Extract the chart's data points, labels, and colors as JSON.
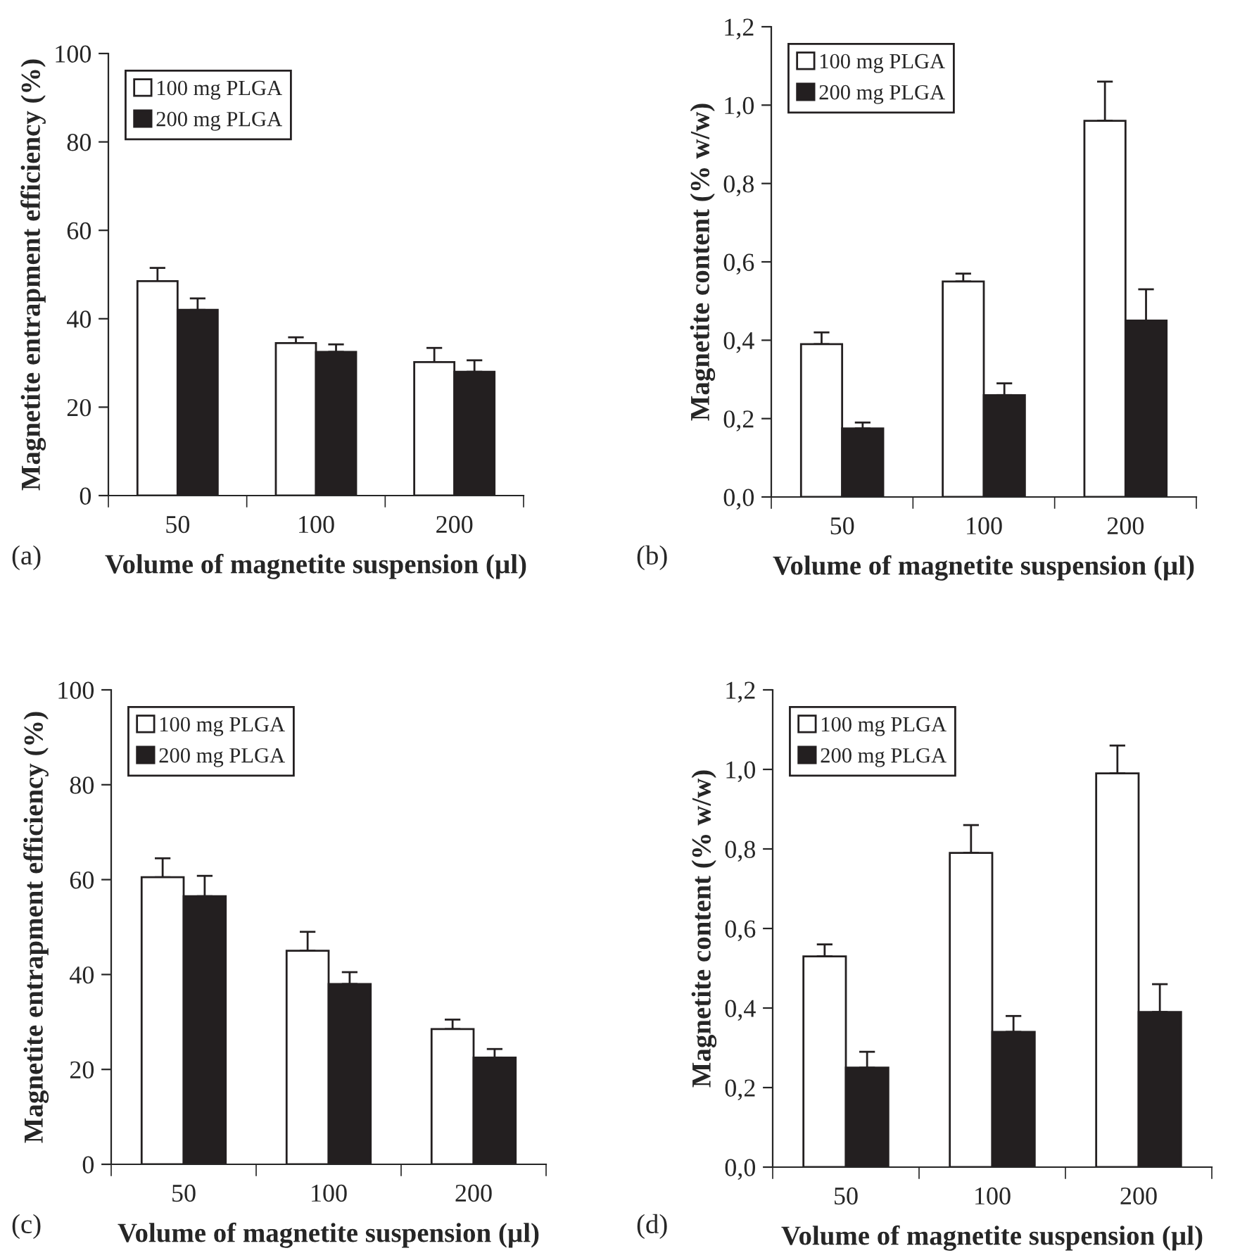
{
  "chart_data": [
    {
      "type": "bar",
      "xlabel": "Volume of magnetite suspension (µl)",
      "ylabel": "Magnetite entrapment efficiency (%)",
      "categories": [
        "50",
        "100",
        "200"
      ],
      "ylim": [
        0,
        100
      ],
      "yticks": [
        0,
        20,
        40,
        60,
        80,
        100
      ],
      "legend": "top left",
      "grid": false,
      "annotations": [
        "(a)"
      ],
      "series": [
        {
          "name": "100 mg PLGA",
          "color": "#ffffff",
          "values": [
            48.5,
            34.5,
            30.2
          ],
          "errors": [
            [
              48.5,
              51.5
            ],
            [
              34.5,
              35.8
            ],
            [
              30.2,
              33.4
            ]
          ]
        },
        {
          "name": "200 mg PLGA",
          "color": "#231f20",
          "values": [
            42,
            32.5,
            28
          ],
          "errors": [
            [
              42,
              44.6
            ],
            [
              32.5,
              34.2
            ],
            [
              28,
              30.6
            ]
          ]
        }
      ]
    },
    {
      "type": "bar",
      "xlabel": "Volume of magnetite suspension (µl)",
      "ylabel": "Magnetite content (% w/w)",
      "categories": [
        "50",
        "100",
        "200"
      ],
      "ylim": [
        0,
        1.2
      ],
      "yticks": [
        {
          "value": 0,
          "label": "0,0"
        },
        {
          "value": 0.2,
          "label": "0,2"
        },
        {
          "value": 0.4,
          "label": "0,4"
        },
        {
          "value": 0.6,
          "label": "0,6"
        },
        {
          "value": 0.8,
          "label": "0,8"
        },
        {
          "value": 1.0,
          "label": "1,0"
        },
        {
          "value": 1.2,
          "label": "1,2"
        }
      ],
      "legend": "top left",
      "grid": false,
      "annotations": [
        "(b)"
      ],
      "series": [
        {
          "name": "100 mg PLGA",
          "color": "#ffffff",
          "values": [
            0.39,
            0.55,
            0.96
          ],
          "errors": [
            [
              0.39,
              0.42
            ],
            [
              0.55,
              0.57
            ],
            [
              0.96,
              1.06
            ]
          ]
        },
        {
          "name": "200 mg PLGA",
          "color": "#231f20",
          "values": [
            0.175,
            0.26,
            0.45
          ],
          "errors": [
            [
              0.175,
              0.19
            ],
            [
              0.26,
              0.29
            ],
            [
              0.45,
              0.53
            ]
          ]
        }
      ]
    },
    {
      "type": "bar",
      "xlabel": "Volume of magnetite suspension (µl)",
      "ylabel": "Magnetite entrapment efficiency (%)",
      "categories": [
        "50",
        "100",
        "200"
      ],
      "ylim": [
        0,
        100
      ],
      "yticks": [
        0,
        20,
        40,
        60,
        80,
        100
      ],
      "legend": "top left",
      "grid": false,
      "annotations": [
        "(c)"
      ],
      "series": [
        {
          "name": "100 mg PLGA",
          "color": "#ffffff",
          "values": [
            60.5,
            45,
            28.5
          ],
          "errors": [
            [
              60.5,
              64.5
            ],
            [
              45,
              49
            ],
            [
              28.5,
              30.5
            ]
          ]
        },
        {
          "name": "200 mg PLGA",
          "color": "#231f20",
          "values": [
            56.5,
            38,
            22.5
          ],
          "errors": [
            [
              56.5,
              60.8
            ],
            [
              38,
              40.5
            ],
            [
              22.5,
              24.3
            ]
          ]
        }
      ]
    },
    {
      "type": "bar",
      "xlabel": "Volume of magnetite suspension (µl)",
      "ylabel": "Magnetite content (% w/w)",
      "categories": [
        "50",
        "100",
        "200"
      ],
      "ylim": [
        0,
        1.2
      ],
      "yticks": [
        {
          "value": 0,
          "label": "0,0"
        },
        {
          "value": 0.2,
          "label": "0,2"
        },
        {
          "value": 0.4,
          "label": "0,4"
        },
        {
          "value": 0.6,
          "label": "0,6"
        },
        {
          "value": 0.8,
          "label": "0,8"
        },
        {
          "value": 1.0,
          "label": "1,0"
        },
        {
          "value": 1.2,
          "label": "1,2"
        }
      ],
      "legend": "top left",
      "grid": false,
      "annotations": [
        "(d)"
      ],
      "series": [
        {
          "name": "100 mg PLGA",
          "color": "#ffffff",
          "values": [
            0.53,
            0.79,
            0.99
          ],
          "errors": [
            [
              0.53,
              0.56
            ],
            [
              0.79,
              0.86
            ],
            [
              0.99,
              1.06
            ]
          ]
        },
        {
          "name": "200 mg PLGA",
          "color": "#231f20",
          "values": [
            0.25,
            0.34,
            0.39
          ],
          "errors": [
            [
              0.25,
              0.29
            ],
            [
              0.34,
              0.38
            ],
            [
              0.39,
              0.46
            ]
          ]
        }
      ]
    }
  ]
}
